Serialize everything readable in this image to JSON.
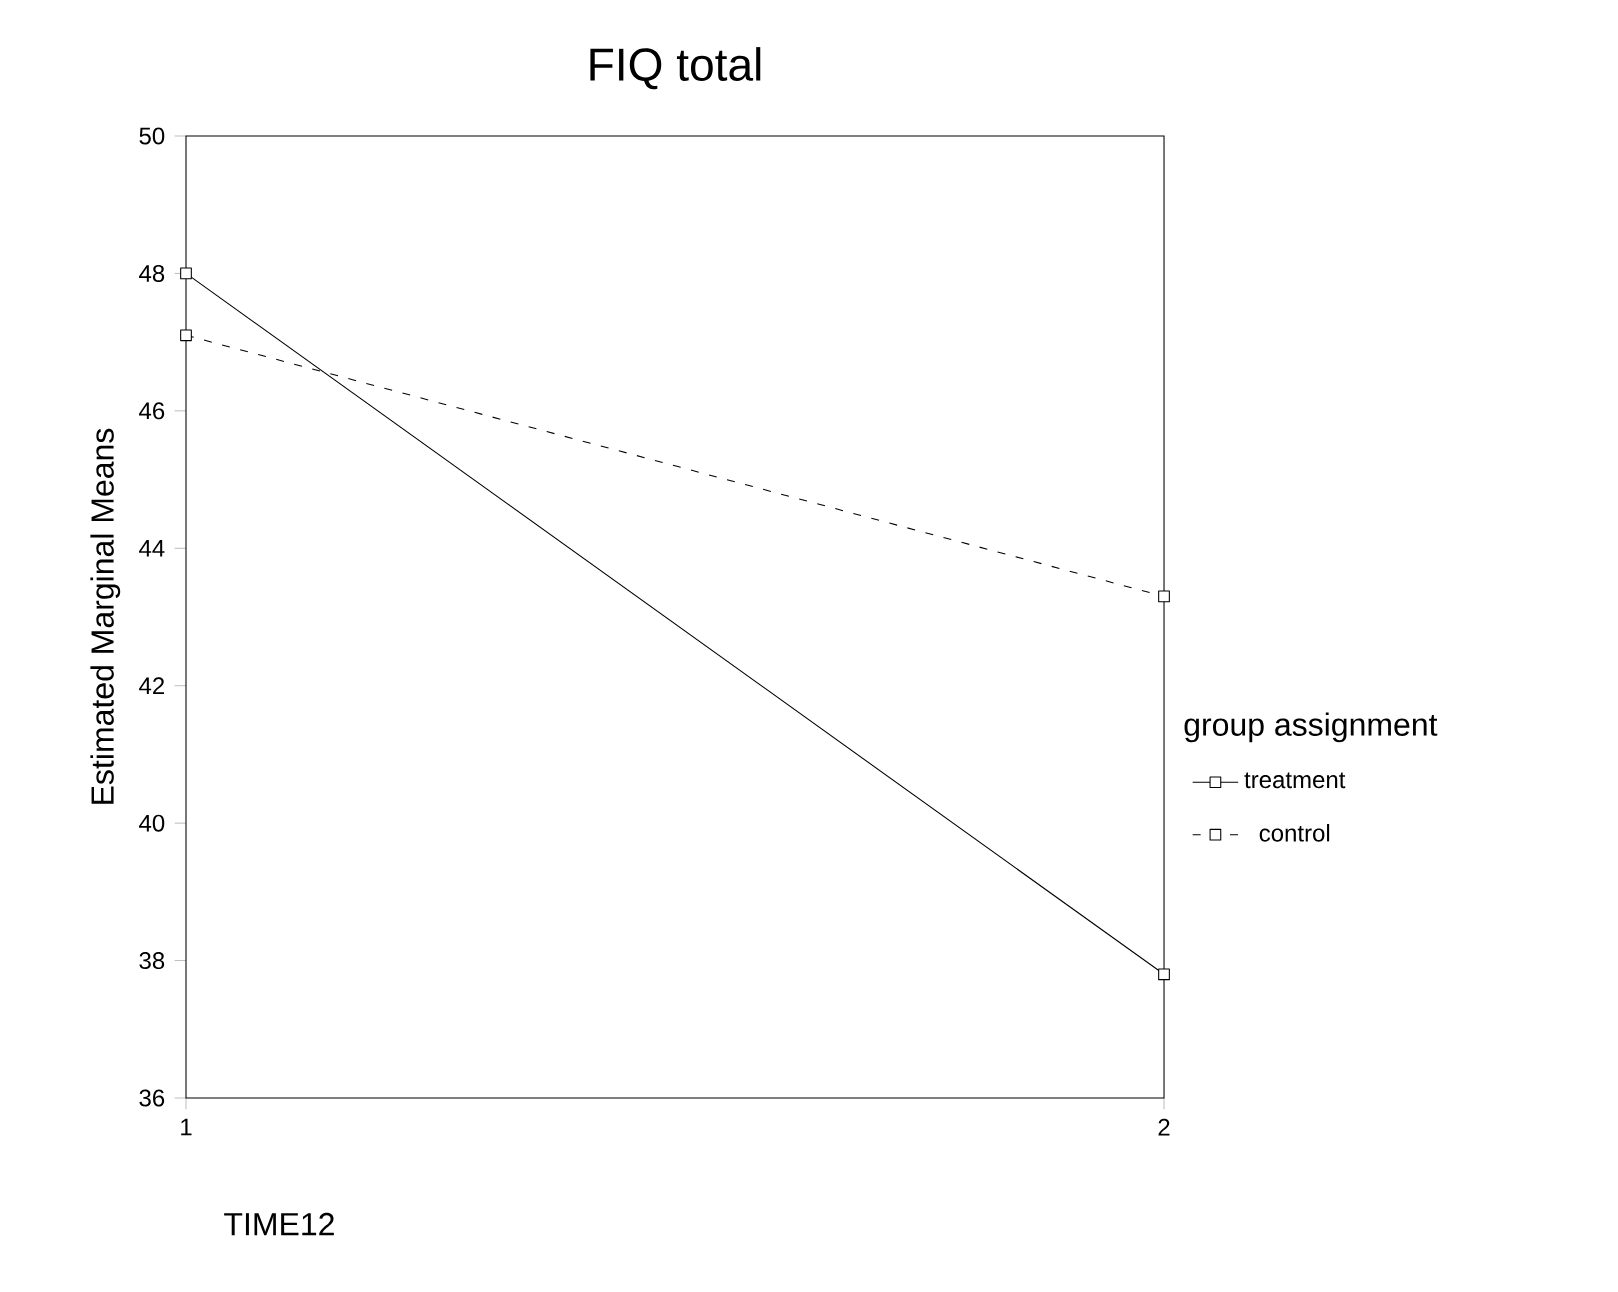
{
  "chart_data": {
    "type": "line",
    "title": "FIQ total",
    "xlabel": "TIME12",
    "ylabel": "Estimated Marginal Means",
    "legend_title": "group assignment",
    "x": [
      1,
      2
    ],
    "xlim": [
      1,
      2
    ],
    "xticks": [
      1,
      2
    ],
    "ylim": [
      36,
      50
    ],
    "yticks": [
      36,
      38,
      40,
      42,
      44,
      46,
      48,
      50
    ],
    "series": [
      {
        "name": "treatment",
        "color": "#000000",
        "values": [
          48.0,
          37.8
        ],
        "line_style": "solid"
      },
      {
        "name": "control",
        "color": "#000000",
        "values": [
          47.1,
          43.3
        ],
        "line_style": "dashed"
      }
    ],
    "marker": "square",
    "legend": "right",
    "grid": false
  }
}
